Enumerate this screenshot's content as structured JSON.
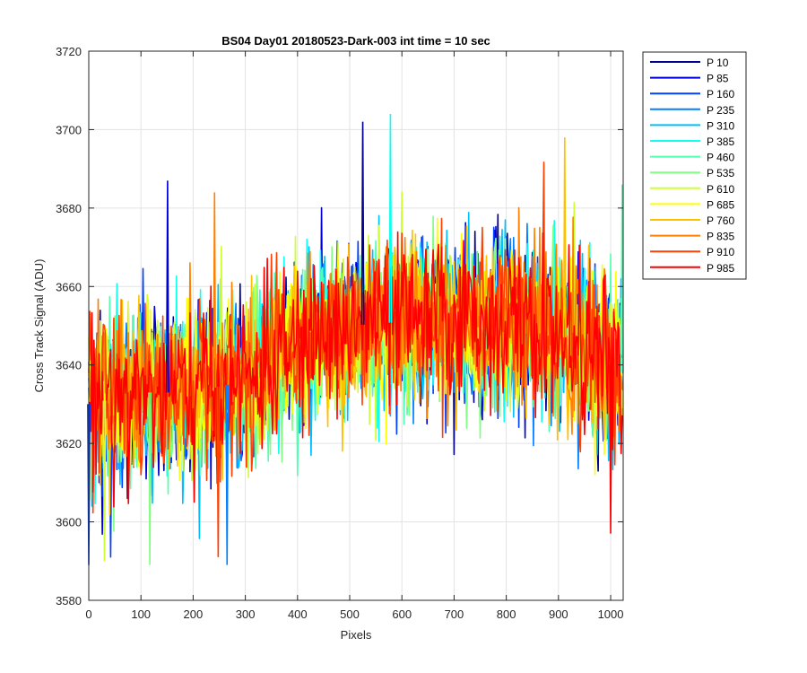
{
  "chart_data": {
    "type": "line",
    "title": "BS04 Day01 20180523-Dark-003 int time = 10 sec",
    "xlabel": "Pixels",
    "ylabel": "Cross Track Signal (ADU)",
    "xlim": [
      0,
      1024
    ],
    "ylim": [
      3580,
      3720
    ],
    "xticks": [
      0,
      100,
      200,
      300,
      400,
      500,
      600,
      700,
      800,
      900,
      1000
    ],
    "yticks": [
      3580,
      3600,
      3620,
      3640,
      3660,
      3680,
      3700,
      3720
    ],
    "grid": true,
    "legend_position": "outside-top-right",
    "series_pattern": {
      "description_of_values": "Noisy signal per pixel; envelope mean rises from ~3633 at pixel 0-300 to ~3652 at pixel 450-800 then falls to ~3640 near 1024; noise std approx 10 ADU",
      "mean_profile": [
        [
          0,
          3630
        ],
        [
          100,
          3633
        ],
        [
          200,
          3633
        ],
        [
          300,
          3636
        ],
        [
          400,
          3645
        ],
        [
          500,
          3650
        ],
        [
          600,
          3651
        ],
        [
          700,
          3652
        ],
        [
          800,
          3651
        ],
        [
          900,
          3648
        ],
        [
          1000,
          3640
        ],
        [
          1024,
          3638
        ]
      ],
      "noise_std": 10,
      "peaks_observed": [
        [
          525,
          3702
        ],
        [
          578,
          3704
        ],
        [
          912,
          3698
        ],
        [
          151,
          3687
        ],
        [
          1022,
          3686
        ],
        [
          241,
          3684
        ]
      ],
      "troughs_observed": [
        [
          0,
          3589
        ],
        [
          117,
          3589
        ],
        [
          248,
          3591
        ],
        [
          265,
          3589
        ],
        [
          30,
          3590
        ],
        [
          1000,
          3597
        ]
      ]
    },
    "series": [
      {
        "name": "P 10",
        "color": "#00008F"
      },
      {
        "name": "P 85",
        "color": "#0000D6"
      },
      {
        "name": "P 160",
        "color": "#0040FF"
      },
      {
        "name": "P 235",
        "color": "#0080FF"
      },
      {
        "name": "P 310",
        "color": "#00BFFF"
      },
      {
        "name": "P 385",
        "color": "#10FFEF"
      },
      {
        "name": "P 460",
        "color": "#50FFAF"
      },
      {
        "name": "P 535",
        "color": "#80FF80"
      },
      {
        "name": "P 610",
        "color": "#CFFF30"
      },
      {
        "name": "P 685",
        "color": "#FFFF00"
      },
      {
        "name": "P 760",
        "color": "#FFC000"
      },
      {
        "name": "P 835",
        "color": "#FF8000"
      },
      {
        "name": "P 910",
        "color": "#FF4000"
      },
      {
        "name": "P 985",
        "color": "#FF0000"
      }
    ]
  }
}
